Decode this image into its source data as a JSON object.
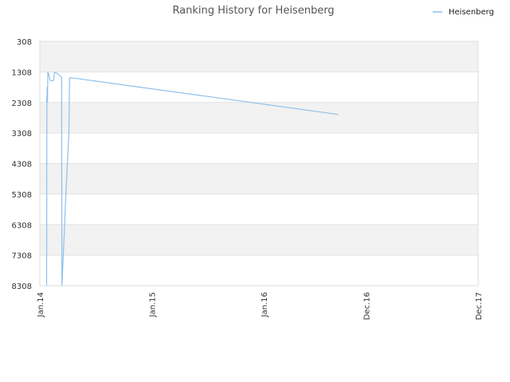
{
  "chart_data": {
    "type": "line",
    "title": "Ranking History for Heisenberg",
    "xlabel": "",
    "ylabel": "",
    "legend": {
      "position": "top-right"
    },
    "grid": true,
    "y_reversed": true,
    "ylim": [
      308,
      8308
    ],
    "xlim": [
      "2014-01-01",
      "2017-12-01"
    ],
    "y_ticks": [
      "308",
      "1308",
      "2308",
      "3308",
      "4308",
      "5308",
      "6308",
      "7308",
      "8308"
    ],
    "x_ticks": [
      "Jan.14",
      "Jan.15",
      "Jan.16",
      "Dec.16",
      "Dec.17"
    ],
    "x_tick_dates": [
      "2014-01-01",
      "2015-01-01",
      "2016-01-01",
      "2016-12-01",
      "2017-12-01"
    ],
    "series": [
      {
        "name": "Heisenberg",
        "color": "#8ec0ea",
        "points": [
          [
            "2014-01-23",
            8308
          ],
          [
            "2014-01-24",
            2300
          ],
          [
            "2014-01-25",
            1800
          ],
          [
            "2014-01-26",
            2300
          ],
          [
            "2014-01-27",
            1308
          ],
          [
            "2014-01-30",
            1380
          ],
          [
            "2014-02-03",
            1580
          ],
          [
            "2014-02-10",
            1600
          ],
          [
            "2014-02-15",
            1580
          ],
          [
            "2014-02-18",
            1320
          ],
          [
            "2014-02-22",
            1330
          ],
          [
            "2014-03-10",
            1450
          ],
          [
            "2014-03-13",
            1500
          ],
          [
            "2014-03-14",
            8308
          ],
          [
            "2014-03-22",
            6500
          ],
          [
            "2014-03-26",
            5500
          ],
          [
            "2014-04-06",
            3300
          ],
          [
            "2014-04-08",
            1508
          ],
          [
            "2014-04-14",
            1500
          ],
          [
            "2016-09-01",
            2700
          ]
        ]
      }
    ]
  }
}
